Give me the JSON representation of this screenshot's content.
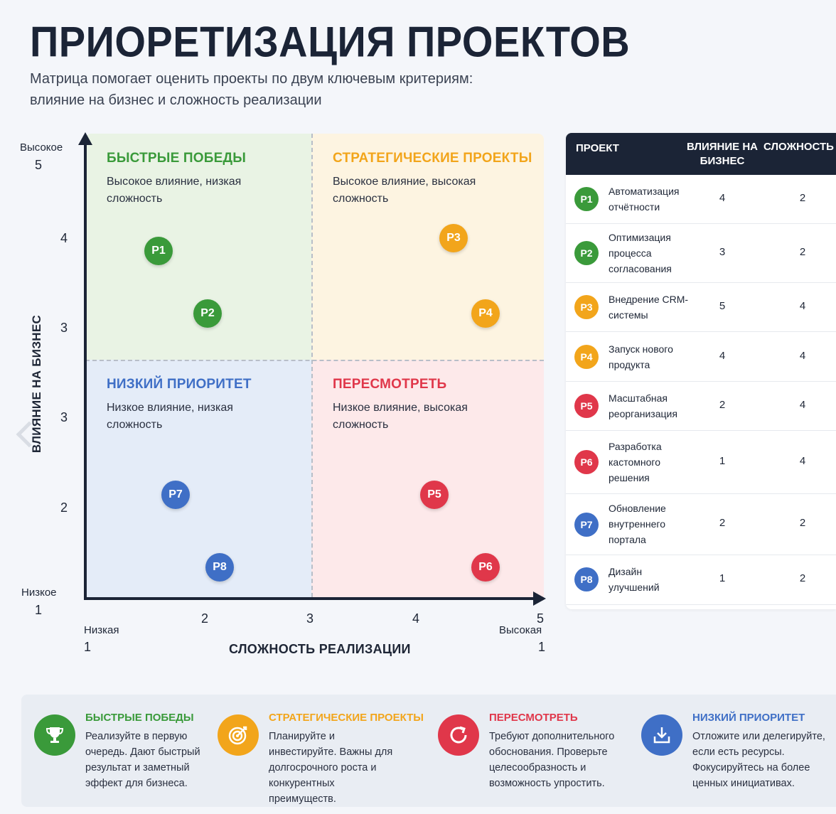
{
  "header": {
    "title": "ПРИОРЕТИЗАЦИЯ ПРОЕКТОВ",
    "subtitle": "Матрица помогает оценить проекты по двум ключевым критериям: влияние на бизнес и сложность реализации"
  },
  "matrix": {
    "y_axis": {
      "title": "ВЛИЯНИЕ НА БИЗНЕС",
      "high_label": "Высокое",
      "low_label": "Низкое",
      "ticks": [
        "5",
        "4",
        "3",
        "3",
        "2",
        "1"
      ]
    },
    "x_axis": {
      "title": "СЛОЖНОСТЬ РЕАЛИЗАЦИИ",
      "low_label": "Низкая",
      "high_label": "Высокая",
      "ticks": [
        "1",
        "2",
        "3",
        "4",
        "5",
        "1"
      ]
    },
    "quadrants": {
      "quick": {
        "title": "БЫСТРЫЕ ПОБЕДЫ",
        "desc": "Высокое влияние, низкая сложность",
        "color": "#3a9a3a"
      },
      "strategic": {
        "title": "СТРАТЕГИЧЕСКИЕ ПРОЕКТЫ",
        "desc": "Высокое влияние, высокая сложность",
        "color": "#f2a51b"
      },
      "low": {
        "title": "НИЗКИЙ ПРИОРИТЕТ",
        "desc": "Низкое влияние, низкая сложность",
        "color": "#3f6fc6"
      },
      "review": {
        "title": "ПЕРЕСМОТРЕТЬ",
        "desc": "Низкое влияние, высокая сложность",
        "color": "#e0374a"
      }
    },
    "points": [
      "P1",
      "P2",
      "P3",
      "P4",
      "P5",
      "P6",
      "P7",
      "P8"
    ]
  },
  "table": {
    "headers": {
      "project": "ПРОЕКТ",
      "impact": "ВЛИЯНИЕ НА БИЗНЕС",
      "complexity": "СЛОЖНОСТЬ РЕАЛИЗАЦИИ"
    },
    "rows": [
      {
        "id": "P1",
        "name": "Автоматизация отчётности",
        "impact": "4",
        "complexity": "2",
        "color": "#3a9a3a"
      },
      {
        "id": "P2",
        "name": "Оптимизация процесса согласования",
        "impact": "3",
        "complexity": "2",
        "color": "#3a9a3a"
      },
      {
        "id": "P3",
        "name": "Внедрение CRM-системы",
        "impact": "5",
        "complexity": "4",
        "color": "#f2a51b"
      },
      {
        "id": "P4",
        "name": "Запуск нового продукта",
        "impact": "4",
        "complexity": "4",
        "color": "#f2a51b"
      },
      {
        "id": "P5",
        "name": "Масштабная реорганизация",
        "impact": "2",
        "complexity": "4",
        "color": "#e0374a"
      },
      {
        "id": "P6",
        "name": "Разработка кастомного решения",
        "impact": "1",
        "complexity": "4",
        "color": "#e0374a"
      },
      {
        "id": "P7",
        "name": "Обновление внутреннего портала",
        "impact": "2",
        "complexity": "2",
        "color": "#3f6fc6"
      },
      {
        "id": "P8",
        "name": "Дизайн улучшений",
        "impact": "1",
        "complexity": "2",
        "color": "#3f6fc6"
      }
    ]
  },
  "legend": [
    {
      "title": "БЫСТРЫЕ ПОБЕДЫ",
      "text": "Реализуйте в первую очередь. Дают быстрый результат и заметный эффект для бизнеса.",
      "icon": "trophy-icon",
      "color": "#3a9a3a"
    },
    {
      "title": "СТРАТЕГИЧЕСКИЕ ПРОЕКТЫ",
      "text": "Планируйте и инвестируйте. Важны для долгосрочного роста и конкурентных преимуществ.",
      "icon": "target-icon",
      "color": "#f2a51b"
    },
    {
      "title": "ПЕРЕСМОТРЕТЬ",
      "text": "Требуют дополнительного обоснования. Проверьте целесообразность и возможность упростить.",
      "icon": "refresh-icon",
      "color": "#e0374a"
    },
    {
      "title": "НИЗКИЙ ПРИОРИТЕТ",
      "text": "Отложите или делегируйте, если есть ресурсы. Фокусируйтесь на более ценных инициативах.",
      "icon": "download-icon",
      "color": "#3f6fc6"
    }
  ]
}
